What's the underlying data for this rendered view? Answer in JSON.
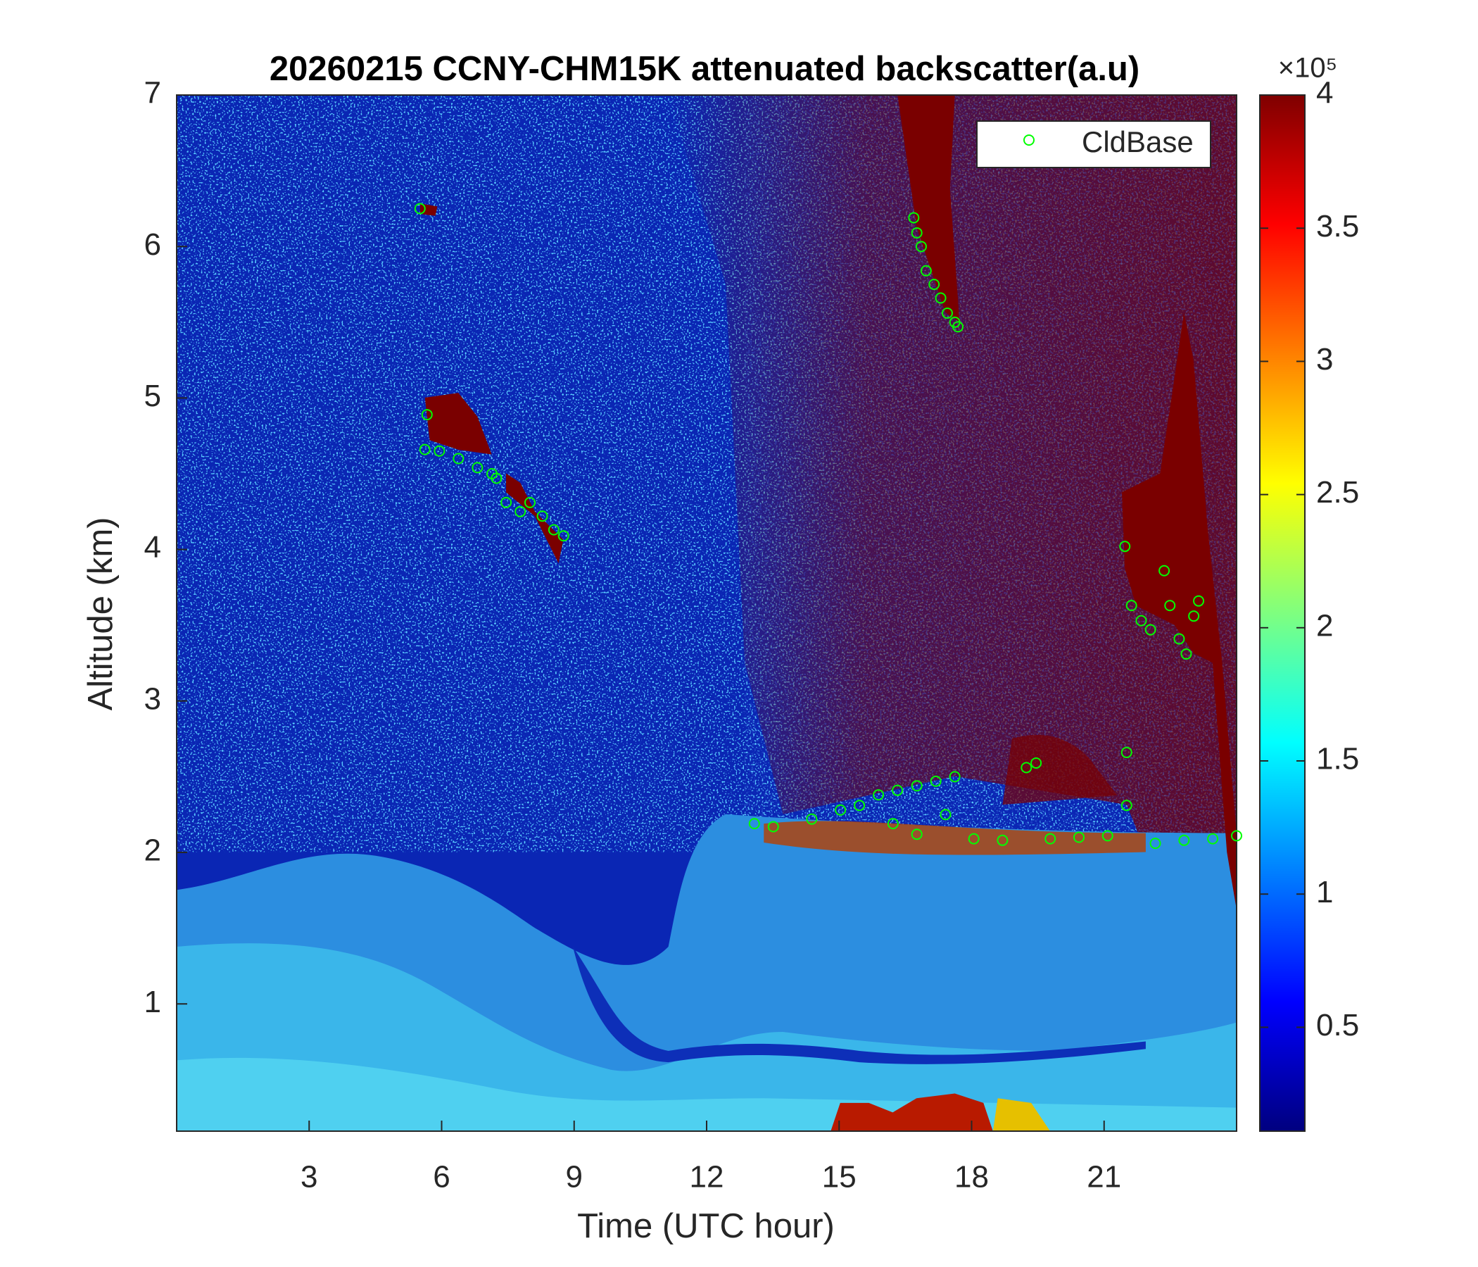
{
  "chart_data": {
    "type": "scatter",
    "title": "20260215 CCNY-CHM15K attenuated backscatter(a.u)",
    "xlabel": "Time (UTC hour)",
    "ylabel": "Altitude (km)",
    "xlim": [
      0,
      24
    ],
    "ylim": [
      0.16,
      7
    ],
    "xticks": [
      3,
      6,
      9,
      12,
      15,
      18,
      21
    ],
    "yticks": [
      1,
      2,
      3,
      4,
      5,
      6,
      7
    ],
    "legend": "upper right",
    "series": [
      {
        "name": "CldBase",
        "color": "#00ff00",
        "x": [
          5.51,
          5.67,
          5.62,
          5.95,
          6.38,
          6.81,
          7.14,
          7.24,
          7.46,
          7.78,
          8.0,
          8.28,
          8.54,
          8.76,
          16.69,
          16.76,
          16.86,
          16.97,
          17.15,
          17.3,
          17.45,
          17.62,
          17.69,
          13.08,
          13.51,
          14.38,
          15.03,
          15.46,
          15.89,
          16.32,
          16.76,
          17.19,
          17.62,
          16.22,
          16.76,
          17.41,
          18.05,
          18.7,
          19.24,
          19.46,
          19.78,
          20.43,
          21.08,
          21.51,
          21.51,
          22.16,
          22.81,
          23.46,
          24.0,
          21.47,
          21.62,
          21.84,
          22.05,
          22.36,
          22.49,
          22.7,
          22.86,
          23.03,
          23.14
        ],
        "values": [
          6.25,
          4.89,
          4.66,
          4.65,
          4.6,
          4.54,
          4.5,
          4.47,
          4.31,
          4.25,
          4.31,
          4.22,
          4.13,
          4.09,
          6.19,
          6.09,
          6.0,
          5.84,
          5.75,
          5.66,
          5.56,
          5.5,
          5.47,
          2.19,
          2.17,
          2.22,
          2.28,
          2.31,
          2.38,
          2.41,
          2.44,
          2.47,
          2.5,
          2.19,
          2.12,
          2.25,
          2.09,
          2.08,
          2.56,
          2.59,
          2.09,
          2.1,
          2.11,
          2.66,
          2.31,
          2.06,
          2.08,
          2.09,
          2.11,
          4.02,
          3.63,
          3.53,
          3.47,
          3.86,
          3.63,
          3.41,
          3.31,
          3.56,
          3.66
        ]
      }
    ],
    "colorbar": {
      "colormap": "jet",
      "clim": [
        11000,
        400000
      ],
      "exponent_label": "×10⁵",
      "ticks": [
        {
          "value": 50000,
          "label": "0.5"
        },
        {
          "value": 100000,
          "label": "1"
        },
        {
          "value": 150000,
          "label": "1.5"
        },
        {
          "value": 200000,
          "label": "2"
        },
        {
          "value": 250000,
          "label": "2.5"
        },
        {
          "value": 300000,
          "label": "3"
        },
        {
          "value": 350000,
          "label": "3.5"
        },
        {
          "value": 400000,
          "label": "4"
        }
      ]
    }
  }
}
